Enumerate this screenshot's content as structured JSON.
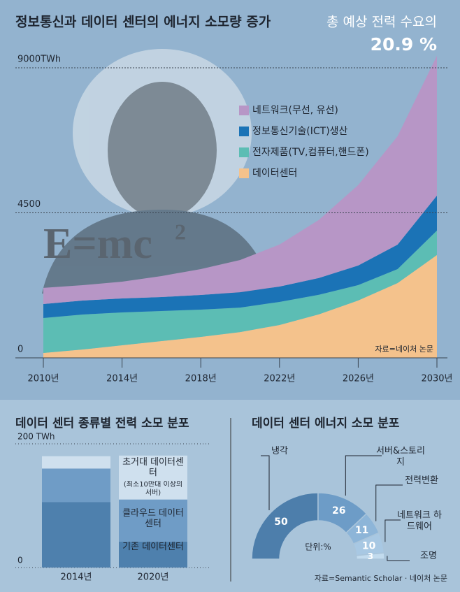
{
  "chart_data": [
    {
      "type": "area",
      "title": "정보통신과 데이터 센터의 에너지 소모량 증가",
      "annotation": "총 예상 전력 수요의",
      "annotation_value": "20.9 %",
      "equation": "E=mc",
      "equation_exponent": "2",
      "source": "자료=네이처 논문",
      "stacked": true,
      "x": [
        2010,
        2012,
        2014,
        2016,
        2018,
        2020,
        2022,
        2024,
        2026,
        2028,
        2030
      ],
      "xlim": [
        2010,
        2030
      ],
      "xticks": [
        {
          "value": 2010,
          "label": "2010년"
        },
        {
          "value": 2014,
          "label": "2014년"
        },
        {
          "value": 2018,
          "label": "2018년"
        },
        {
          "value": 2022,
          "label": "2022년"
        },
        {
          "value": 2026,
          "label": "2026년"
        },
        {
          "value": 2030,
          "label": "2030년"
        }
      ],
      "ylim": [
        0,
        9000
      ],
      "yticks": [
        0,
        4500,
        {
          "value": 9000,
          "label": "9000TWh"
        }
      ],
      "grid": true,
      "series": [
        {
          "name": "데이터센터",
          "color": "#f4c28c",
          "values": [
            152,
            260,
            390,
            520,
            650,
            800,
            1020,
            1350,
            1780,
            2320,
            3190
          ]
        },
        {
          "name": "전자제품(TV,컴퓨터,핸드폰)",
          "color": "#5cbdb4",
          "values": [
            1085,
            1085,
            1020,
            933,
            846,
            760,
            716,
            608,
            477,
            434,
            760
          ]
        },
        {
          "name": "정보통신기술(ICT)생산",
          "color": "#1b73b6",
          "values": [
            434,
            434,
            434,
            434,
            456,
            477,
            477,
            521,
            608,
            760,
            1085
          ]
        },
        {
          "name": "네트워크(무선, 유선)",
          "color": "#b796c6",
          "values": [
            500,
            477,
            521,
            651,
            803,
            998,
            1302,
            1801,
            2496,
            3364,
            4340
          ]
        }
      ]
    },
    {
      "type": "stacked-bar",
      "title": "데이터 센터 종류별 전력 소모 분포",
      "categories": [
        "2014년",
        "2020년"
      ],
      "ylim": [
        0,
        200
      ],
      "yticks": [
        0,
        {
          "value": 200,
          "label": "200 TWh"
        }
      ],
      "series": [
        {
          "name": "기존 데이터센터",
          "color": "#4e80ad",
          "values": [
            106,
            42
          ]
        },
        {
          "name": "클라우드 데이터센터",
          "color": "#6f9cc6",
          "values": [
            54,
            68
          ]
        },
        {
          "name": "초거대 데이터센터",
          "note": "(최소10만대 이상의서버)",
          "color": "#cfe0ee",
          "values": [
            20,
            71
          ]
        }
      ]
    },
    {
      "type": "half-donut",
      "title": "데이터 센터 에너지 소모 분포",
      "unit_label": "단위:%",
      "source": "자료=Semantic Scholar · 네이처 논문",
      "categories": [
        "냉각",
        "서버&스토리지",
        "전력변환",
        "네트워크 하드웨어",
        "조명"
      ],
      "values": [
        50,
        26,
        11,
        10,
        3
      ],
      "colors": [
        "#4d7eab",
        "#6d9cc7",
        "#8db5d8",
        "#a8c8e3",
        "#c2dbee"
      ]
    }
  ]
}
